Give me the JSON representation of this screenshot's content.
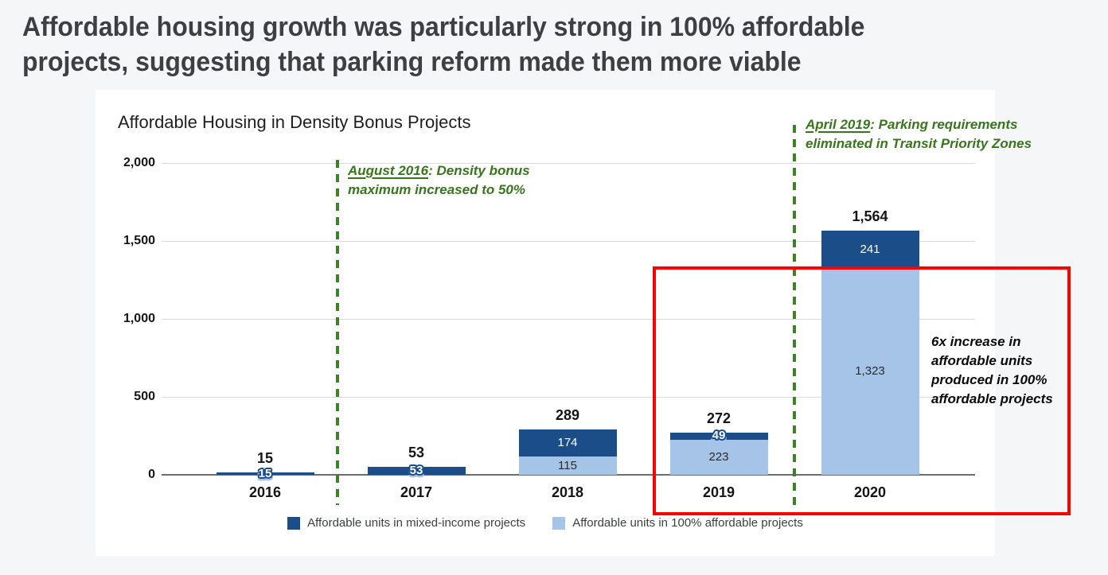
{
  "headline": {
    "line1": "Affordable housing growth was particularly strong in 100% affordable",
    "line2": "projects, suggesting that parking reform made them more viable"
  },
  "chart_data": {
    "type": "bar",
    "stacked": true,
    "title": "Affordable Housing in Density Bonus Projects",
    "categories": [
      "2016",
      "2017",
      "2018",
      "2019",
      "2020"
    ],
    "series": [
      {
        "name": "Affordable units in mixed-income projects",
        "color": "#1b4e89",
        "values": [
          15,
          53,
          174,
          49,
          241
        ],
        "labels": [
          "15",
          "53",
          "174",
          "49",
          "241"
        ]
      },
      {
        "name": "Affordable units in 100% affordable projects",
        "color": "#a5c4e8",
        "values": [
          0,
          0,
          115,
          223,
          1323
        ],
        "labels": [
          "",
          "",
          "115",
          "223",
          "1,323"
        ]
      }
    ],
    "totals": {
      "values": [
        15,
        53,
        289,
        272,
        1564
      ],
      "labels": [
        "15",
        "53",
        "289",
        "272",
        "1,564"
      ]
    },
    "ylim": [
      0,
      2000
    ],
    "yticks": {
      "values": [
        0,
        500,
        1000,
        1500,
        2000
      ],
      "labels": [
        "0",
        "500",
        "1,000",
        "1,500",
        "2,000"
      ]
    },
    "grid": "horizontal",
    "legend_position": "bottom"
  },
  "annotations": {
    "august2016": {
      "date": "August 2016",
      "text": ": Density bonus maximum increased to 50%"
    },
    "april2019": {
      "date": "April 2019",
      "text": ": Parking requirements eliminated in Transit Priority Zones"
    },
    "sixfold": "6x increase in affordable units produced in 100% affordable projects"
  },
  "colors": {
    "mixed_income_blue": "#1b4e89",
    "affordable_light_blue": "#a5c4e8",
    "annotation_green": "#38761d",
    "dashed_line_green": "#3c8227",
    "highlight_red": "#f90300",
    "headline_gray": "#3d3f42",
    "card_background": "#ffffff",
    "page_background": "#f4f6f8"
  }
}
